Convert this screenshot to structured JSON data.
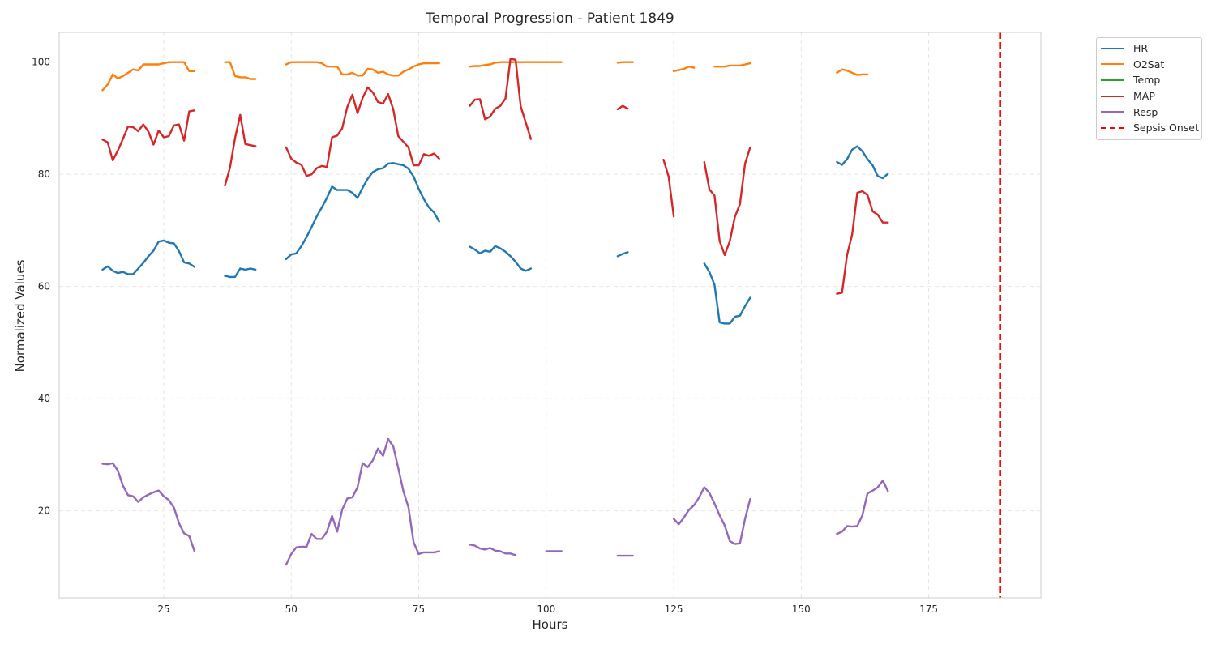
{
  "chart_data": {
    "type": "line",
    "title": "Temporal Progression - Patient 1849",
    "xlabel": "Hours",
    "ylabel": "Normalized Values",
    "xlim": [
      4.5,
      197
    ],
    "ylim": [
      4.5,
      105.3
    ],
    "xticks": [
      25,
      50,
      75,
      100,
      125,
      150,
      175
    ],
    "yticks": [
      20,
      40,
      60,
      80,
      100
    ],
    "grid": true,
    "legend_position": "outside-top-right",
    "series": [
      {
        "name": "HR",
        "color": "#1f77b4",
        "segments": [
          {
            "x": [
              13,
              14,
              15,
              16,
              17,
              18,
              19,
              20,
              21,
              22,
              23,
              24,
              25,
              26,
              27,
              28,
              29,
              30,
              31
            ],
            "y": [
              63,
              63.6,
              62.8,
              62.4,
              62.6,
              62.2,
              62.2,
              63.2,
              64.2,
              65.4,
              66.4,
              68,
              68.2,
              67.8,
              67.7,
              66.3,
              64.3,
              64.1,
              63.5
            ]
          },
          {
            "x": [
              37,
              38,
              39,
              40,
              41,
              42,
              43
            ],
            "y": [
              61.9,
              61.7,
              61.7,
              63.2,
              63,
              63.2,
              63
            ]
          },
          {
            "x": [
              49,
              50,
              51,
              52,
              53,
              54,
              55,
              56,
              57,
              58,
              59,
              60,
              61,
              62,
              63,
              64,
              65,
              66,
              67,
              68,
              69,
              70,
              71,
              72,
              73,
              74,
              75,
              76,
              77,
              78,
              79
            ],
            "y": [
              64.9,
              65.7,
              65.9,
              67.2,
              68.8,
              70.6,
              72.5,
              74.1,
              75.8,
              77.8,
              77.2,
              77.2,
              77.2,
              76.7,
              75.8,
              77.6,
              79.2,
              80.4,
              80.9,
              81.1,
              81.9,
              82,
              81.8,
              81.6,
              81,
              79.6,
              77.4,
              75.6,
              74.1,
              73.2,
              71.6
            ]
          },
          {
            "x": [
              85,
              86,
              87,
              88,
              89,
              90,
              91,
              92,
              93,
              94,
              95,
              96,
              97
            ],
            "y": [
              67.1,
              66.6,
              65.9,
              66.4,
              66.2,
              67.2,
              66.8,
              66.2,
              65.4,
              64.4,
              63.2,
              62.8,
              63.2
            ]
          },
          {
            "x": [
              114,
              115,
              116
            ],
            "y": [
              65.4,
              65.8,
              66.1
            ]
          },
          {
            "x": [
              131,
              132,
              133,
              134,
              135,
              136,
              137,
              138,
              139,
              140
            ],
            "y": [
              64.1,
              62.6,
              60.3,
              53.6,
              53.4,
              53.4,
              54.6,
              54.8,
              56.5,
              58
            ]
          },
          {
            "x": [
              157,
              158,
              159,
              160,
              161,
              162,
              163,
              164,
              165,
              166,
              167
            ],
            "y": [
              82.2,
              81.7,
              82.7,
              84.4,
              85,
              84.1,
              82.7,
              81.6,
              79.7,
              79.3,
              80.1
            ]
          }
        ]
      },
      {
        "name": "O2Sat",
        "color": "#ff7f0e",
        "segments": [
          {
            "x": [
              13,
              14,
              15,
              16,
              17,
              18,
              19,
              20,
              21,
              22,
              23,
              24,
              25,
              26,
              27,
              28,
              29,
              30,
              31
            ],
            "y": [
              95,
              96,
              97.8,
              97.1,
              97.5,
              98.1,
              98.7,
              98.5,
              99.6,
              99.6,
              99.6,
              99.6,
              99.8,
              100,
              100,
              100,
              100,
              98.4,
              98.4
            ]
          },
          {
            "x": [
              37,
              38,
              39,
              40,
              41,
              42,
              43
            ],
            "y": [
              100,
              100,
              97.5,
              97.3,
              97.3,
              97,
              97
            ]
          },
          {
            "x": [
              49,
              50,
              51,
              52,
              53,
              54,
              55,
              56,
              57,
              58,
              59,
              60,
              61,
              62,
              63,
              64,
              65,
              66,
              67,
              68,
              69,
              70,
              71,
              72,
              73,
              74,
              75,
              76,
              77,
              78,
              79
            ],
            "y": [
              99.6,
              100,
              100,
              100,
              100,
              100,
              100,
              99.8,
              99.2,
              99.2,
              99.2,
              97.8,
              97.8,
              98.1,
              97.6,
              97.6,
              98.8,
              98.7,
              98.1,
              98.3,
              97.8,
              97.6,
              97.6,
              98.3,
              98.7,
              99.2,
              99.6,
              99.8,
              99.8,
              99.8,
              99.8
            ]
          },
          {
            "x": [
              85,
              86,
              87,
              88,
              89,
              90,
              91,
              92,
              93,
              94,
              95,
              96,
              97,
              98,
              99,
              100,
              101,
              102,
              103
            ],
            "y": [
              99.2,
              99.3,
              99.3,
              99.5,
              99.6,
              99.9,
              100,
              100,
              100,
              100,
              100,
              100,
              100,
              100,
              100,
              100,
              100,
              100,
              100
            ]
          },
          {
            "x": [
              114,
              115,
              116,
              117
            ],
            "y": [
              99.9,
              100,
              100,
              100
            ]
          },
          {
            "x": [
              125,
              126,
              127,
              128,
              129
            ],
            "y": [
              98.4,
              98.6,
              98.8,
              99.2,
              99
            ]
          },
          {
            "x": [
              133,
              134,
              135,
              136,
              137,
              138,
              139,
              140
            ],
            "y": [
              99.2,
              99.2,
              99.2,
              99.4,
              99.4,
              99.4,
              99.6,
              99.8
            ]
          },
          {
            "x": [
              157,
              158,
              159,
              160,
              161,
              162,
              163
            ],
            "y": [
              98.1,
              98.7,
              98.5,
              98.1,
              97.7,
              97.8,
              97.8
            ]
          }
        ]
      },
      {
        "name": "Temp",
        "color": "#2ca02c",
        "segments": []
      },
      {
        "name": "MAP",
        "color": "#d62728",
        "segments": [
          {
            "x": [
              13,
              14,
              15,
              16,
              17,
              18,
              19,
              20,
              21,
              22,
              23,
              24,
              25,
              26,
              27,
              28,
              29,
              30,
              31
            ],
            "y": [
              86.2,
              85.7,
              82.5,
              84.2,
              86.3,
              88.5,
              88.4,
              87.7,
              88.9,
              87.6,
              85.3,
              87.8,
              86.6,
              86.8,
              88.7,
              88.9,
              86,
              91.2,
              91.4
            ]
          },
          {
            "x": [
              37,
              38,
              39,
              40,
              41,
              42,
              43
            ],
            "y": [
              78,
              81.2,
              86.5,
              90.6,
              85.4,
              85.2,
              85
            ]
          },
          {
            "x": [
              49,
              50,
              51,
              52,
              53,
              54,
              55,
              56,
              57,
              58,
              59,
              60,
              61,
              62,
              63,
              64,
              65,
              66,
              67,
              68,
              69,
              70,
              71,
              72,
              73,
              74,
              75,
              76,
              77,
              78,
              79
            ],
            "y": [
              84.8,
              82.8,
              82.1,
              81.7,
              79.7,
              80,
              81.1,
              81.5,
              81.3,
              86.6,
              86.9,
              88.2,
              92,
              94.2,
              90.9,
              93.6,
              95.5,
              94.6,
              92.9,
              92.6,
              94.3,
              91.6,
              86.8,
              85.8,
              84.8,
              81.6,
              81.6,
              83.6,
              83.3,
              83.7,
              82.8
            ]
          },
          {
            "x": [
              85,
              86,
              87,
              88,
              89,
              90,
              91,
              92,
              93,
              94,
              95,
              96,
              97
            ],
            "y": [
              92.2,
              93.3,
              93.4,
              89.8,
              90.3,
              91.7,
              92.2,
              93.5,
              100.6,
              100.4,
              92.1,
              89.2,
              86.3
            ]
          },
          {
            "x": [
              114,
              115,
              116
            ],
            "y": [
              91.6,
              92.2,
              91.7
            ]
          },
          {
            "x": [
              123,
              124,
              125
            ],
            "y": [
              82.6,
              79.6,
              72.5
            ]
          },
          {
            "x": [
              131,
              132,
              133,
              134,
              135,
              136,
              137,
              138,
              139,
              140
            ],
            "y": [
              82.2,
              77.3,
              76.2,
              68.1,
              65.6,
              68.1,
              72.4,
              74.7,
              81.9,
              84.8
            ]
          },
          {
            "x": [
              157,
              158,
              159,
              160,
              161,
              162,
              163,
              164,
              165,
              166,
              167
            ],
            "y": [
              58.7,
              58.9,
              65.6,
              69.3,
              76.7,
              77,
              76.3,
              73.4,
              72.8,
              71.4,
              71.4
            ]
          }
        ]
      },
      {
        "name": "Resp",
        "color": "#9467bd",
        "segments": [
          {
            "x": [
              13,
              14,
              15,
              16,
              17,
              18,
              19,
              20,
              21,
              22,
              23,
              24,
              25,
              26,
              27,
              28,
              29,
              30,
              31
            ],
            "y": [
              28.4,
              28.3,
              28.5,
              27.2,
              24.5,
              22.8,
              22.6,
              21.6,
              22.4,
              22.9,
              23.3,
              23.6,
              22.6,
              21.9,
              20.6,
              17.8,
              16,
              15.5,
              12.9
            ]
          },
          {
            "x": [
              49,
              50,
              51,
              52,
              53,
              54,
              55,
              56,
              57,
              58,
              59,
              60,
              61,
              62,
              63,
              64,
              65,
              66,
              67,
              68,
              69,
              70,
              71,
              72,
              73,
              74,
              75,
              76,
              77,
              78,
              79
            ],
            "y": [
              10.4,
              12.3,
              13.5,
              13.6,
              13.6,
              15.9,
              15,
              15,
              16.3,
              19.1,
              16.3,
              20.2,
              22.2,
              22.4,
              24.2,
              28.5,
              27.8,
              29,
              31.1,
              29.8,
              32.8,
              31.5,
              27.6,
              23.5,
              20.6,
              14.4,
              12.3,
              12.6,
              12.6,
              12.6,
              12.8
            ]
          },
          {
            "x": [
              85,
              86,
              87,
              88,
              89,
              90,
              91,
              92,
              93,
              94
            ],
            "y": [
              14,
              13.8,
              13.3,
              13.1,
              13.4,
              12.9,
              12.8,
              12.4,
              12.4,
              12.1
            ]
          },
          {
            "x": [
              100,
              101,
              102,
              103
            ],
            "y": [
              12.8,
              12.8,
              12.8,
              12.8
            ]
          },
          {
            "x": [
              114,
              115,
              116,
              117
            ],
            "y": [
              12,
              12,
              12,
              12
            ]
          },
          {
            "x": [
              125,
              126,
              127,
              128,
              129,
              130,
              131,
              132,
              133,
              134,
              135,
              136,
              137,
              138,
              139,
              140
            ],
            "y": [
              18.6,
              17.6,
              18.8,
              20.2,
              21,
              22.4,
              24.2,
              23.2,
              21.3,
              19.2,
              17.4,
              14.6,
              14.1,
              14.2,
              18.6,
              22.1
            ]
          },
          {
            "x": [
              157,
              158,
              159,
              160,
              161,
              162,
              163,
              164,
              165,
              166,
              167
            ],
            "y": [
              15.9,
              16.3,
              17.3,
              17.2,
              17.3,
              19.2,
              23.1,
              23.6,
              24.2,
              25.4,
              23.5
            ]
          }
        ]
      }
    ],
    "annotations": [
      {
        "name": "Sepsis Onset",
        "type": "vline",
        "x": 189,
        "color": "#ff0000",
        "style": "dashed"
      }
    ]
  }
}
